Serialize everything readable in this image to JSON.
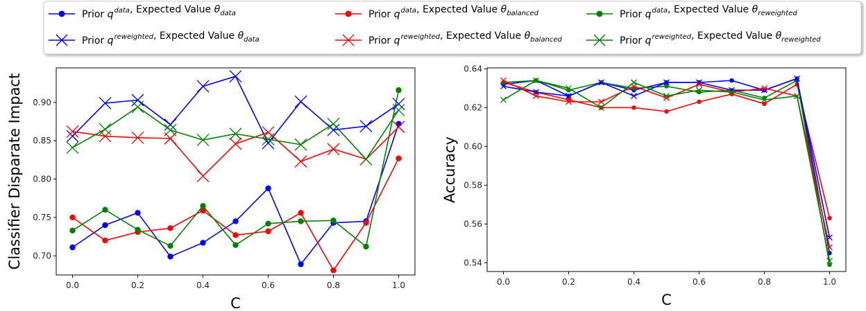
{
  "legend": {
    "placement": "top",
    "entries": [
      {
        "prefix": "Prior ",
        "q_sup": "data",
        "middle": ", Expected Value ",
        "theta_sub": "data",
        "color": "#0000ff",
        "marker": "circle"
      },
      {
        "prefix": "Prior ",
        "q_sup": "data",
        "middle": ", Expected Value ",
        "theta_sub": "balanced",
        "color": "#ff0000",
        "marker": "circle"
      },
      {
        "prefix": "Prior ",
        "q_sup": "data",
        "middle": ", Expected Value ",
        "theta_sub": "reweighted",
        "color": "#008000",
        "marker": "circle"
      },
      {
        "prefix": "Prior ",
        "q_sup": "reweighted",
        "middle": ", Expected Value ",
        "theta_sub": "data",
        "color": "#0000ff",
        "marker": "x"
      },
      {
        "prefix": "Prior ",
        "q_sup": "reweighted",
        "middle": ", Expected Value ",
        "theta_sub": "balanced",
        "color": "#ff0000",
        "marker": "x"
      },
      {
        "prefix": "Prior ",
        "q_sup": "reweighted",
        "middle": ", Expected Value ",
        "theta_sub": "reweighted",
        "color": "#008000",
        "marker": "x"
      }
    ]
  },
  "chart_data": [
    {
      "type": "line",
      "xlabel": "C",
      "ylabel": "Classifier Disparate Impact",
      "xlim": [
        -0.05,
        1.05
      ],
      "ylim": [
        0.675,
        0.945
      ],
      "xticks": [
        "0.0",
        "0.2",
        "0.4",
        "0.6",
        "0.8",
        "1.0"
      ],
      "yticks": [
        "0.70",
        "0.75",
        "0.80",
        "0.85",
        "0.90"
      ],
      "x": [
        0.0,
        0.1,
        0.2,
        0.3,
        0.4,
        0.5,
        0.6,
        0.7,
        0.8,
        0.9,
        1.0
      ],
      "series": [
        {
          "legend_index": 0,
          "color": "#0000ff",
          "marker": "circle",
          "values": [
            0.711,
            0.74,
            0.756,
            0.699,
            0.717,
            0.745,
            0.788,
            0.689,
            0.743,
            0.745,
            0.872
          ]
        },
        {
          "legend_index": 1,
          "color": "#ff0000",
          "marker": "circle",
          "values": [
            0.75,
            0.72,
            0.731,
            0.736,
            0.759,
            0.727,
            0.732,
            0.756,
            0.681,
            0.743,
            0.827
          ]
        },
        {
          "legend_index": 2,
          "color": "#008000",
          "marker": "circle",
          "values": [
            0.733,
            0.76,
            0.734,
            0.713,
            0.765,
            0.714,
            0.742,
            0.745,
            0.746,
            0.712,
            0.916
          ]
        },
        {
          "legend_index": 3,
          "color": "#0000ff",
          "marker": "x",
          "values": [
            0.856,
            0.899,
            0.903,
            0.871,
            0.921,
            0.934,
            0.847,
            0.901,
            0.864,
            0.869,
            0.898
          ]
        },
        {
          "legend_index": 4,
          "color": "#ff0000",
          "marker": "x",
          "values": [
            0.862,
            0.856,
            0.854,
            0.853,
            0.804,
            0.846,
            0.861,
            0.823,
            0.839,
            0.826,
            0.868
          ]
        },
        {
          "legend_index": 5,
          "color": "#008000",
          "marker": "x",
          "values": [
            0.841,
            0.865,
            0.894,
            0.864,
            0.851,
            0.859,
            0.852,
            0.845,
            0.872,
            0.826,
            0.89
          ]
        }
      ]
    },
    {
      "type": "line",
      "xlabel": "C",
      "ylabel": "Accuracy",
      "xlim": [
        -0.05,
        1.05
      ],
      "ylim": [
        0.5355,
        0.6405
      ],
      "xticks": [
        "0.0",
        "0.2",
        "0.4",
        "0.6",
        "0.8",
        "1.0"
      ],
      "yticks": [
        "0.54",
        "0.56",
        "0.58",
        "0.60",
        "0.62",
        "0.64"
      ],
      "x": [
        0.0,
        0.1,
        0.2,
        0.3,
        0.4,
        0.5,
        0.6,
        0.7,
        0.8,
        0.9,
        1.0
      ],
      "series": [
        {
          "legend_index": 0,
          "color": "#0000ff",
          "marker": "circle",
          "values": [
            0.632,
            0.634,
            0.626,
            0.633,
            0.629,
            0.633,
            0.633,
            0.634,
            0.629,
            0.635,
            0.545
          ]
        },
        {
          "legend_index": 1,
          "color": "#ff0000",
          "marker": "circle",
          "values": [
            0.633,
            0.628,
            0.624,
            0.62,
            0.62,
            0.618,
            0.623,
            0.627,
            0.622,
            0.632,
            0.563
          ]
        },
        {
          "legend_index": 2,
          "color": "#008000",
          "marker": "circle",
          "values": [
            0.633,
            0.634,
            0.629,
            0.633,
            0.63,
            0.631,
            0.628,
            0.629,
            0.625,
            0.634,
            0.539
          ]
        },
        {
          "legend_index": 3,
          "color": "#0000ff",
          "marker": "x",
          "values": [
            0.631,
            0.628,
            0.626,
            0.633,
            0.626,
            0.633,
            0.633,
            0.629,
            0.629,
            0.635,
            0.553
          ]
        },
        {
          "legend_index": 4,
          "color": "#ff0000",
          "marker": "x",
          "values": [
            0.634,
            0.626,
            0.623,
            0.623,
            0.631,
            0.625,
            0.632,
            0.628,
            0.63,
            0.626,
            0.548
          ]
        },
        {
          "legend_index": 5,
          "color": "#008000",
          "marker": "x",
          "values": [
            0.624,
            0.634,
            0.63,
            0.62,
            0.633,
            0.626,
            0.629,
            0.628,
            0.624,
            0.626,
            0.541
          ]
        }
      ]
    }
  ]
}
